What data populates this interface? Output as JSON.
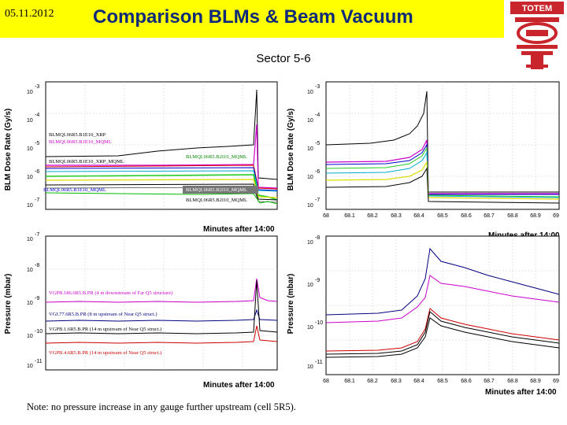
{
  "header": {
    "date": "05.11.2012",
    "title": "Comparison BLMs & Beam Vacuum",
    "subtitle": "Sector 5-6",
    "logo_text": "TOTEM",
    "banner_color": "#ffff00",
    "title_color": "#102a7a",
    "logo_color": "#c8252c"
  },
  "blm_left": {
    "ylabel": "BLM Dose Rate (Gy/s)",
    "xlabel": "Minutes after 14:00",
    "y_ticks": [
      {
        "m": "10",
        "e": "-3"
      },
      {
        "m": "10",
        "e": "-4"
      },
      {
        "m": "10",
        "e": "-5"
      },
      {
        "m": "10",
        "e": "-6"
      },
      {
        "m": "10",
        "e": "-7"
      }
    ],
    "legend": [
      {
        "text": "BLMQI.06R5.B1E10_XRP",
        "color": "#000000"
      },
      {
        "text": "BLMQI.06R5.B1E10_MQML",
        "color": "#cc00cc"
      },
      {
        "text": "BLMQI.06R5.B1E10_XRP_MQML",
        "color": "#000000"
      },
      {
        "text": "BLMQI.06R5.B2I10_MQML",
        "color": "#008800"
      },
      {
        "text": "BLMQI.06R5.B1E10_MQML",
        "color": "#0000cc"
      },
      {
        "text": "BLMQI.06R5.B2I10_MQML",
        "color": "#ffffff"
      },
      {
        "text": "BLMQI.06R5.B2I10_MQML",
        "color": "#000000"
      }
    ]
  },
  "blm_right": {
    "ylabel": "BLM Dose Rate (Gy/s)",
    "xlabel": "Minutes after 14:00",
    "y_ticks": [
      {
        "m": "10",
        "e": "-3"
      },
      {
        "m": "10",
        "e": "-4"
      },
      {
        "m": "10",
        "e": "-5"
      },
      {
        "m": "10",
        "e": "-6"
      },
      {
        "m": "10",
        "e": "-7"
      }
    ],
    "x_ticks": [
      "68",
      "68.1",
      "68.2",
      "68.3",
      "68.4",
      "68.5",
      "68.6",
      "68.7",
      "68.8",
      "68.9",
      "69"
    ]
  },
  "pressure_left": {
    "ylabel": "Pressure (mbar)",
    "xlabel": "Minutes after 14:00",
    "y_ticks": [
      {
        "m": "10",
        "e": "-7"
      },
      {
        "m": "10",
        "e": "-8"
      },
      {
        "m": "10",
        "e": "-9"
      },
      {
        "m": "10",
        "e": "-10"
      },
      {
        "m": "10",
        "e": "-11"
      }
    ],
    "legend": [
      {
        "text": "VGPB.186.6R5.B.PR (4 m downstream of Far Q5 structure)",
        "color": "#cc00cc"
      },
      {
        "text": "VGI.77.6R5.B.PR (8 m upstream of Near Q5 struct.)",
        "color": "#000080"
      },
      {
        "text": "VGPB.1.6R5.B.PR (14 m upstream of Near Q5 struct.)",
        "color": "#000000"
      },
      {
        "text": "VGPB.4.6R5.B.PR (14 m upstream of Near Q5 struct.)",
        "color": "#cc0000"
      }
    ]
  },
  "pressure_right": {
    "ylabel": "Pressure (mbar)",
    "xlabel": "Minutes after 14:00",
    "y_ticks": [
      {
        "m": "10",
        "e": "-8"
      },
      {
        "m": "10",
        "e": "-9"
      },
      {
        "m": "10",
        "e": "-10"
      },
      {
        "m": "10",
        "e": "-11"
      }
    ],
    "x_ticks": [
      "68",
      "68.1",
      "68.2",
      "68.3",
      "68.4",
      "68.5",
      "68.6",
      "68.7",
      "68.8",
      "68.9",
      "69"
    ]
  },
  "note": "Note: no pressure increase in any gauge further upstream (cell 5R5)."
}
